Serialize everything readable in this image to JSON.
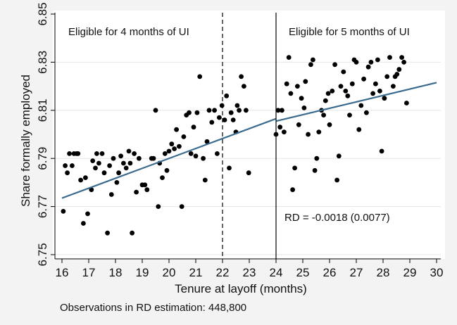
{
  "chart_data": {
    "type": "scatter",
    "title": "",
    "xlabel": "Tenure at layoff (months)",
    "ylabel": "Share formally employed",
    "xlim": [
      15.9,
      30.1
    ],
    "ylim": [
      6.75,
      6.85
    ],
    "xticks": [
      16,
      17,
      18,
      19,
      20,
      21,
      22,
      23,
      24,
      25,
      26,
      27,
      28,
      29,
      30
    ],
    "yticks": [
      6.75,
      6.77,
      6.79,
      6.81,
      6.83,
      6.85
    ],
    "ytick_labels": [
      "6.75",
      "6.77",
      "6.79",
      "6.81",
      "6.83",
      "6.85"
    ],
    "colors": {
      "fit_line": "#3a6b8e",
      "points": "#000000",
      "plot_bg": "#ffffff",
      "page_bg": "#f3f3f3"
    },
    "points": [
      [
        16.05,
        6.768
      ],
      [
        16.12,
        6.787
      ],
      [
        16.2,
        6.784
      ],
      [
        16.28,
        6.792
      ],
      [
        16.38,
        6.787
      ],
      [
        16.45,
        6.792
      ],
      [
        16.55,
        6.792
      ],
      [
        16.6,
        6.792
      ],
      [
        16.7,
        6.781
      ],
      [
        16.8,
        6.763
      ],
      [
        16.88,
        6.782
      ],
      [
        16.96,
        6.767
      ],
      [
        17.1,
        6.777
      ],
      [
        17.15,
        6.789
      ],
      [
        17.25,
        6.786
      ],
      [
        17.3,
        6.792
      ],
      [
        17.38,
        6.788
      ],
      [
        17.5,
        6.792
      ],
      [
        17.58,
        6.784
      ],
      [
        17.7,
        6.759
      ],
      [
        17.78,
        6.787
      ],
      [
        17.85,
        6.775
      ],
      [
        17.92,
        6.79
      ],
      [
        18.05,
        6.78
      ],
      [
        18.12,
        6.784
      ],
      [
        18.2,
        6.791
      ],
      [
        18.3,
        6.788
      ],
      [
        18.4,
        6.786
      ],
      [
        18.5,
        6.793
      ],
      [
        18.55,
        6.788
      ],
      [
        18.62,
        6.759
      ],
      [
        18.7,
        6.792
      ],
      [
        18.78,
        6.776
      ],
      [
        18.88,
        6.79
      ],
      [
        19.0,
        6.779
      ],
      [
        19.1,
        6.779
      ],
      [
        19.18,
        6.777
      ],
      [
        19.35,
        6.79
      ],
      [
        19.42,
        6.79
      ],
      [
        19.5,
        6.81
      ],
      [
        19.6,
        6.77
      ],
      [
        19.65,
        6.788
      ],
      [
        19.75,
        6.782
      ],
      [
        19.85,
        6.792
      ],
      [
        19.92,
        6.785
      ],
      [
        20.0,
        6.793
      ],
      [
        20.1,
        6.796
      ],
      [
        20.2,
        6.794
      ],
      [
        20.28,
        6.802
      ],
      [
        20.38,
        6.795
      ],
      [
        20.48,
        6.77
      ],
      [
        20.55,
        6.799
      ],
      [
        20.65,
        6.808
      ],
      [
        20.75,
        6.809
      ],
      [
        20.82,
        6.792
      ],
      [
        20.92,
        6.803
      ],
      [
        21.0,
        6.791
      ],
      [
        21.05,
        6.809
      ],
      [
        21.15,
        6.824
      ],
      [
        21.28,
        6.79
      ],
      [
        21.35,
        6.781
      ],
      [
        21.42,
        6.797
      ],
      [
        21.5,
        6.81
      ],
      [
        21.6,
        6.805
      ],
      [
        21.7,
        6.81
      ],
      [
        21.8,
        6.792
      ],
      [
        21.88,
        6.807
      ],
      [
        21.98,
        6.812
      ],
      [
        22.08,
        6.806
      ],
      [
        22.15,
        6.816
      ],
      [
        22.25,
        6.786
      ],
      [
        22.32,
        6.809
      ],
      [
        22.4,
        6.806
      ],
      [
        22.5,
        6.801
      ],
      [
        22.55,
        6.812
      ],
      [
        22.62,
        6.81
      ],
      [
        22.7,
        6.824
      ],
      [
        22.8,
        6.82
      ],
      [
        22.88,
        6.81
      ],
      [
        22.98,
        6.784
      ],
      [
        24.0,
        6.8
      ],
      [
        24.08,
        6.81
      ],
      [
        24.15,
        6.803
      ],
      [
        24.22,
        6.81
      ],
      [
        24.3,
        6.801
      ],
      [
        24.4,
        6.821
      ],
      [
        24.48,
        6.832
      ],
      [
        24.55,
        6.817
      ],
      [
        24.62,
        6.777
      ],
      [
        24.7,
        6.786
      ],
      [
        24.8,
        6.82
      ],
      [
        24.85,
        6.804
      ],
      [
        24.95,
        6.815
      ],
      [
        25.05,
        6.811
      ],
      [
        25.1,
        6.822
      ],
      [
        25.2,
        6.8
      ],
      [
        25.3,
        6.829
      ],
      [
        25.38,
        6.831
      ],
      [
        25.45,
        6.785
      ],
      [
        25.52,
        6.79
      ],
      [
        25.6,
        6.801
      ],
      [
        25.7,
        6.81
      ],
      [
        25.78,
        6.808
      ],
      [
        25.85,
        6.814
      ],
      [
        25.95,
        6.817
      ],
      [
        26.0,
        6.804
      ],
      [
        26.1,
        6.818
      ],
      [
        26.2,
        6.829
      ],
      [
        26.28,
        6.781
      ],
      [
        26.35,
        6.791
      ],
      [
        26.42,
        6.82
      ],
      [
        26.52,
        6.826
      ],
      [
        26.6,
        6.818
      ],
      [
        26.68,
        6.816
      ],
      [
        26.75,
        6.808
      ],
      [
        26.85,
        6.821
      ],
      [
        26.92,
        6.831
      ],
      [
        27.0,
        6.83
      ],
      [
        27.1,
        6.802
      ],
      [
        27.18,
        6.812
      ],
      [
        27.28,
        6.823
      ],
      [
        27.38,
        6.809
      ],
      [
        27.45,
        6.828
      ],
      [
        27.55,
        6.83
      ],
      [
        27.62,
        6.817
      ],
      [
        27.72,
        6.821
      ],
      [
        27.8,
        6.831
      ],
      [
        27.88,
        6.818
      ],
      [
        27.95,
        6.793
      ],
      [
        28.05,
        6.815
      ],
      [
        28.15,
        6.824
      ],
      [
        28.25,
        6.832
      ],
      [
        28.38,
        6.82
      ],
      [
        28.45,
        6.824
      ],
      [
        28.52,
        6.825
      ],
      [
        28.6,
        6.827
      ],
      [
        28.7,
        6.832
      ],
      [
        28.78,
        6.83
      ],
      [
        28.88,
        6.813
      ]
    ],
    "fit_segments": [
      {
        "name": "Eligible for 4 months of UI",
        "x": [
          16.0,
          24.0
        ],
        "y": [
          6.7735,
          6.8065
        ]
      },
      {
        "name": "Eligible for 5 months of UI",
        "x": [
          24.0,
          30.0
        ],
        "y": [
          6.8055,
          6.8215
        ]
      }
    ],
    "vertical_lines": [
      {
        "x": 22,
        "style": "dashed"
      },
      {
        "x": 24,
        "style": "solid"
      }
    ],
    "annotations": {
      "left_region": "Eligible for 4 months of UI",
      "right_region": "Eligible for 5 months of UI",
      "rd_estimate": "RD = -0.0018 (0.0077)"
    },
    "note": "Observations in RD estimation: 448,800"
  }
}
